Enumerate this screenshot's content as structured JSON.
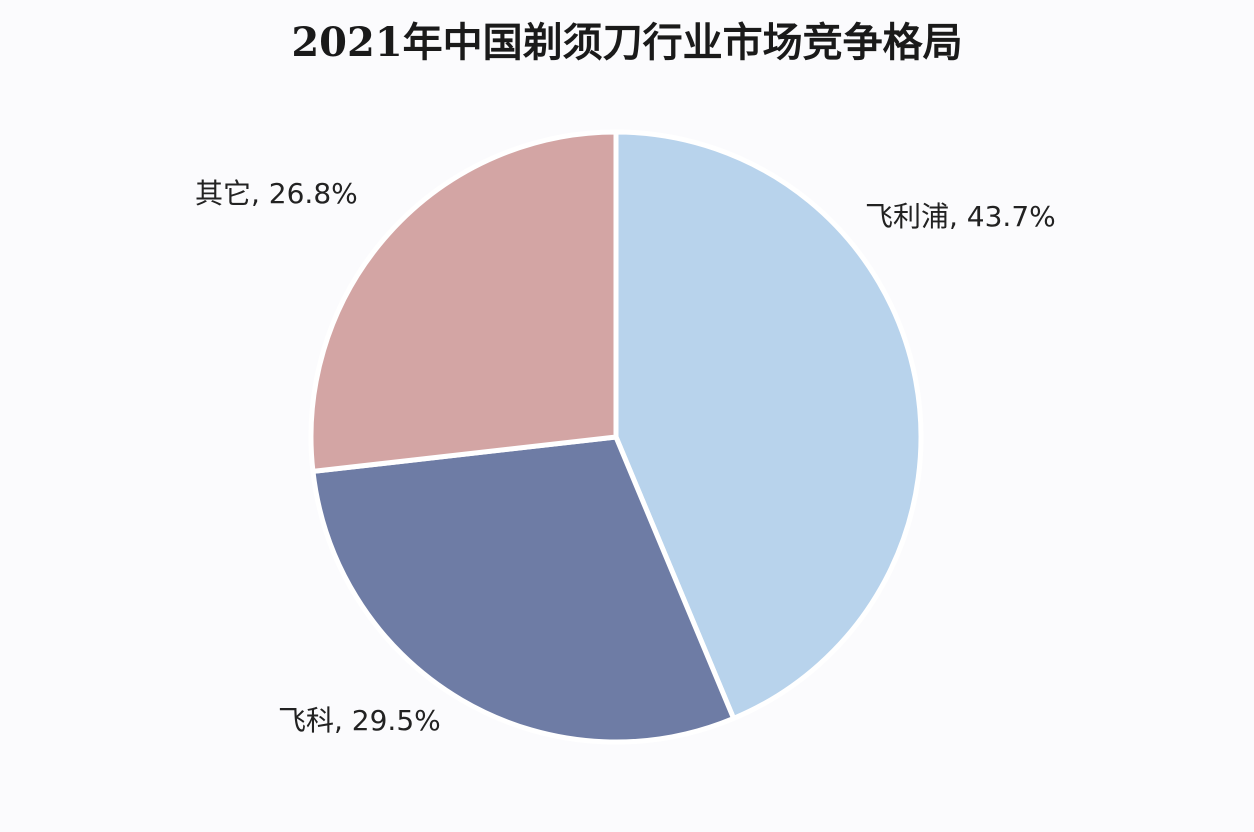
{
  "chart_data": {
    "type": "pie",
    "title": "2021年中国剃须刀行业市场竞争格局",
    "values": [
      43.7,
      29.5,
      26.8
    ],
    "value_labels": [
      "飞利浦, 43.7%",
      "飞科, 29.5%",
      "其它, 26.8%"
    ],
    "colors": [
      "#b8d3ec",
      "#6e7ca5",
      "#d3a5a4"
    ]
  }
}
